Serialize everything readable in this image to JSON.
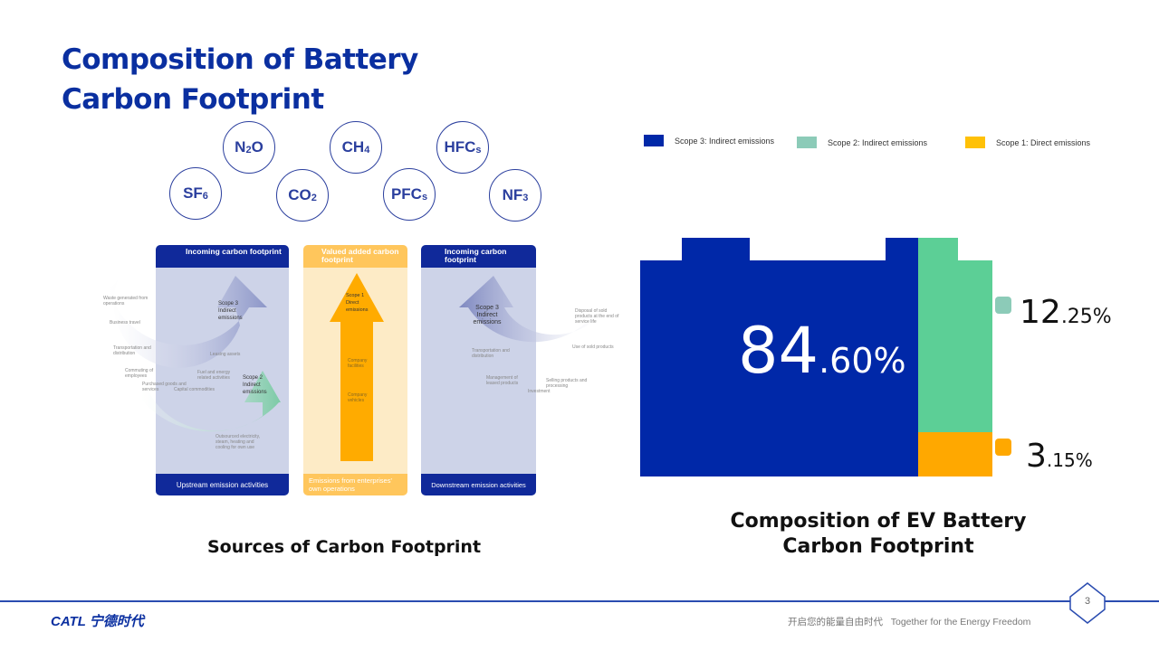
{
  "title_line1": "Composition of Battery",
  "title_line2": "Carbon Footprint",
  "gases": [
    {
      "base": "SF",
      "sub": "6"
    },
    {
      "base": "N",
      "sub": "2",
      "tail": "O"
    },
    {
      "base": "CO",
      "sub": "2"
    },
    {
      "base": "CH",
      "sub": "4"
    },
    {
      "base": "PFC",
      "sub": "s"
    },
    {
      "base": "HFC",
      "sub": "s"
    },
    {
      "base": "NF",
      "sub": "3"
    }
  ],
  "panels": {
    "upstream": {
      "header": "Incoming carbon footprint",
      "footer": "Upstream emission activities",
      "scope3": "Scope 3 Indirect emissions",
      "scope2": "Scope 2 Indirect emissions",
      "items": [
        "Waste generated from operations",
        "Business travel",
        "Transportation and distribution",
        "Commuting of employees",
        "Purchased goods and services",
        "Capital commodities",
        "Fuel and energy related activities",
        "Leasing assets",
        "Outsourced electricity, steam, heating and cooling for own use"
      ]
    },
    "value_added": {
      "header": "Valued added carbon footprint",
      "footer": "Emissions from enterprises' own operations",
      "scope1": "Scope 1 Direct emissions",
      "items": [
        "Company facilities",
        "Company vehicles"
      ]
    },
    "downstream": {
      "header": "Incoming carbon footprint",
      "footer": "Downstream emission activities",
      "scope3": "Scope 3 Indirect emissions",
      "items": [
        "Transportation and distribution",
        "Management of leased products",
        "Investment",
        "Selling products and processing",
        "Use of sold products",
        "Disposal of sold products at the end of service life"
      ]
    }
  },
  "left_caption": "Sources of Carbon Footprint",
  "chart_data": {
    "type": "bar",
    "title": "Composition of EV Battery Carbon Footprint",
    "legend_position": "top",
    "series": [
      {
        "name": "Scope 3: Indirect emissions",
        "value": 84.6,
        "color": "#0028a8",
        "label_int": "84",
        "label_dec": ".60%"
      },
      {
        "name": "Scope 2: Indirect emissions",
        "value": 12.25,
        "color": "#5ccf96",
        "label_int": "12",
        "label_dec": ".25%"
      },
      {
        "name": "Scope 1: Direct emissions",
        "value": 3.15,
        "color": "#ffa800",
        "label_int": "3",
        "label_dec": ".15%"
      }
    ]
  },
  "footer": {
    "logo": "CATL 宁德时代",
    "slogan": "开启您的能量自由时代   Together for the Energy Freedom",
    "page": "3"
  }
}
